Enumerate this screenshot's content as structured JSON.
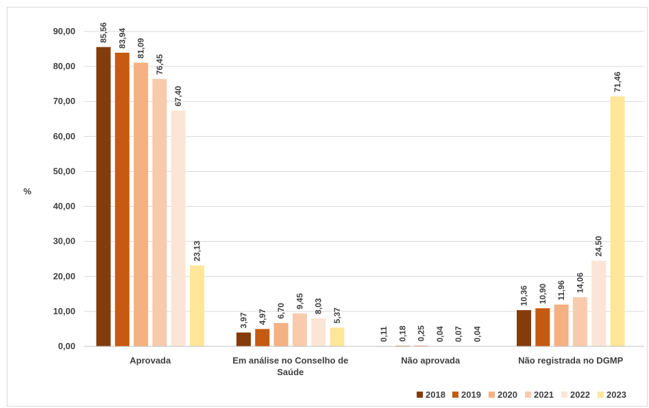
{
  "chart_data": {
    "type": "bar",
    "title": "",
    "xlabel": "",
    "ylabel": "%",
    "ylim": [
      0,
      90
    ],
    "ytick_step": 10,
    "ytick_labels": [
      "0,00",
      "10,00",
      "20,00",
      "30,00",
      "40,00",
      "50,00",
      "60,00",
      "70,00",
      "80,00",
      "90,00"
    ],
    "grid": true,
    "legend_position": "bottom-right",
    "categories": [
      [
        "Aprovada"
      ],
      [
        "Em análise no Conselho de",
        "Saúde"
      ],
      [
        "Não aprovada"
      ],
      [
        "Não registrada no DGMP"
      ]
    ],
    "series": [
      {
        "name": "2018",
        "color": "#843c0c",
        "values": [
          85.56,
          3.97,
          0.11,
          10.36
        ],
        "labels": [
          "85,56",
          "3,97",
          "0,11",
          "10,36"
        ]
      },
      {
        "name": "2019",
        "color": "#c55a11",
        "values": [
          83.94,
          4.97,
          0.18,
          10.9
        ],
        "labels": [
          "83,94",
          "4,97",
          "0,18",
          "10,90"
        ]
      },
      {
        "name": "2020",
        "color": "#f4b183",
        "values": [
          81.09,
          6.7,
          0.25,
          11.96
        ],
        "labels": [
          "81,09",
          "6,70",
          "0,25",
          "11,96"
        ]
      },
      {
        "name": "2021",
        "color": "#f8cbad",
        "values": [
          76.45,
          9.45,
          0.04,
          14.06
        ],
        "labels": [
          "76,45",
          "9,45",
          "0,04",
          "14,06"
        ]
      },
      {
        "name": "2022",
        "color": "#fbe5d6",
        "values": [
          67.4,
          8.03,
          0.07,
          24.5
        ],
        "labels": [
          "67,40",
          "8,03",
          "0,07",
          "24,50"
        ]
      },
      {
        "name": "2023",
        "color": "#ffe699",
        "values": [
          23.13,
          5.37,
          0.04,
          71.46
        ],
        "labels": [
          "23,13",
          "5,37",
          "0,04",
          "71,46"
        ]
      }
    ]
  }
}
